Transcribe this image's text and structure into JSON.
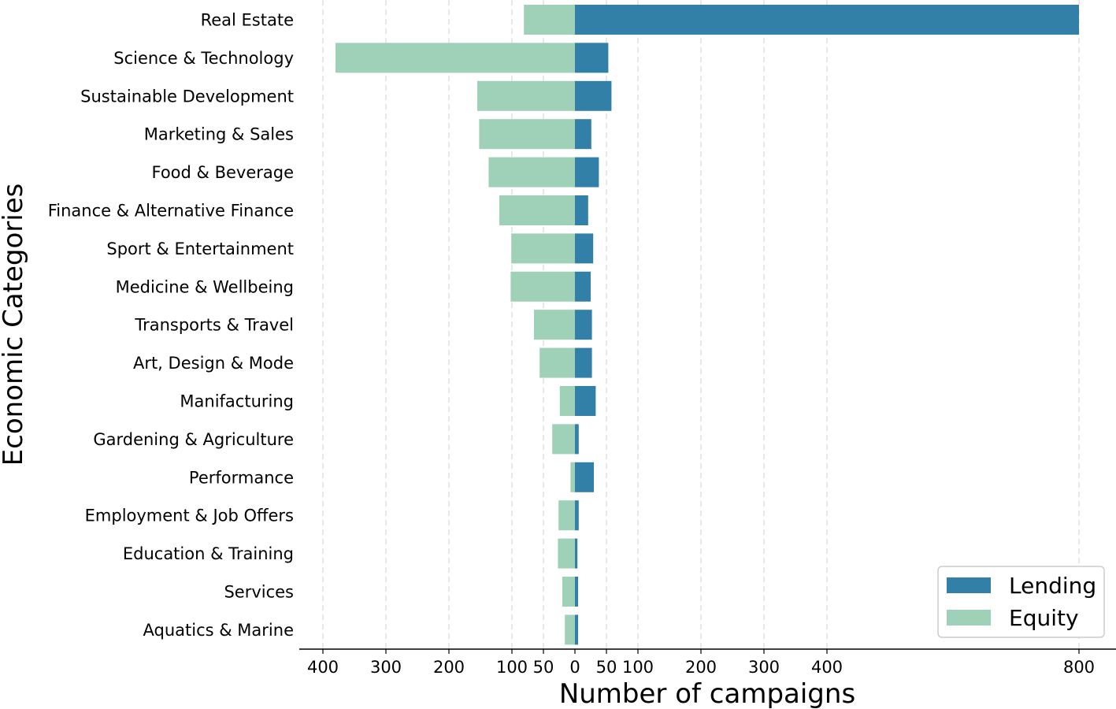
{
  "chart_data": {
    "type": "bar",
    "orientation": "horizontal-diverging",
    "ylabel": "Economic Categories",
    "xlabel": "Number of campaigns",
    "x_ticks": [
      {
        "value": -400,
        "label": "400"
      },
      {
        "value": -300,
        "label": "300"
      },
      {
        "value": -200,
        "label": "200"
      },
      {
        "value": -100,
        "label": "100"
      },
      {
        "value": -50,
        "label": "50"
      },
      {
        "value": 0,
        "label": "0"
      },
      {
        "value": 50,
        "label": "50"
      },
      {
        "value": 100,
        "label": "100"
      },
      {
        "value": 200,
        "label": "200"
      },
      {
        "value": 300,
        "label": "300"
      },
      {
        "value": 400,
        "label": "400"
      },
      {
        "value": 800,
        "label": "800"
      }
    ],
    "grid": "vertical-dashed",
    "legend_position": "bottom-right",
    "categories": [
      "Real Estate",
      "Science & Technology",
      "Sustainable Development",
      "Marketing & Sales",
      "Food & Beverage",
      "Finance & Alternative Finance",
      "Sport & Entertainment",
      "Medicine & Wellbeing",
      "Transports & Travel",
      "Art, Design & Mode",
      "Manifacturing",
      "Gardening & Agriculture",
      "Performance",
      "Employment & Job Offers",
      "Education & Training",
      "Services",
      "Aquatics & Marine"
    ],
    "series": [
      {
        "name": "Lending",
        "color": "#3280a8",
        "values": [
          800,
          53,
          58,
          26,
          38,
          21,
          29,
          25,
          27,
          27,
          33,
          6,
          30,
          6,
          4,
          5,
          5
        ]
      },
      {
        "name": "Equity",
        "color": "#9fd0b8",
        "values": [
          81,
          380,
          155,
          152,
          137,
          120,
          101,
          102,
          65,
          56,
          24,
          36,
          7,
          26,
          27,
          20,
          16
        ]
      }
    ]
  }
}
